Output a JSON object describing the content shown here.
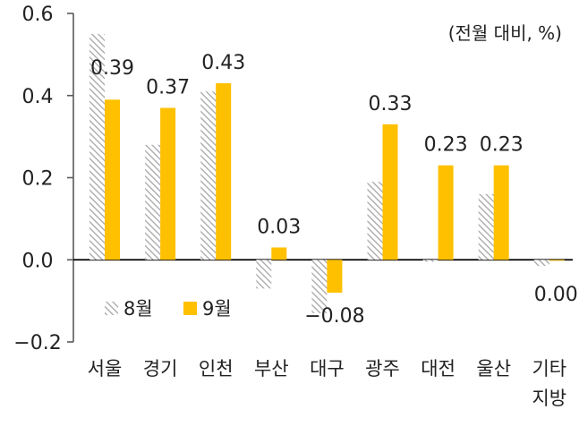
{
  "chart_data": {
    "type": "bar",
    "unit_label": "(전월 대비, %)",
    "categories": [
      [
        "서울"
      ],
      [
        "경기"
      ],
      [
        "인천"
      ],
      [
        "부산"
      ],
      [
        "대구"
      ],
      [
        "광주"
      ],
      [
        "대전"
      ],
      [
        "울산"
      ],
      [
        "기타",
        "지방"
      ]
    ],
    "series": [
      {
        "name": "8월",
        "style": "hatched",
        "color": "#a6a6a6",
        "values": [
          0.55,
          0.28,
          0.41,
          -0.07,
          -0.13,
          0.19,
          -0.005,
          0.16,
          -0.015
        ],
        "labels": [
          "",
          "",
          "",
          "",
          "",
          "",
          "",
          "",
          ""
        ]
      },
      {
        "name": "9월",
        "style": "solid",
        "color": "#ffc000",
        "values": [
          0.39,
          0.37,
          0.43,
          0.03,
          -0.08,
          0.33,
          0.23,
          0.23,
          0.0
        ],
        "labels": [
          "0.39",
          "0.37",
          "0.43",
          "0.03",
          "−0.08",
          "0.33",
          "0.23",
          "0.23",
          "0.00"
        ]
      }
    ],
    "ylim": [
      -0.2,
      0.6
    ],
    "yticks": [
      {
        "value": 0.6,
        "label": "0.6"
      },
      {
        "value": 0.4,
        "label": "0.4"
      },
      {
        "value": 0.2,
        "label": "0.2"
      },
      {
        "value": 0.0,
        "label": "0.0"
      },
      {
        "value": -0.2,
        "label": "−0.2"
      }
    ],
    "legend": "inside-lower-left",
    "grid": false,
    "colors": {
      "axis": "#595959",
      "zero_line": "#000000",
      "text": "#222222"
    }
  }
}
